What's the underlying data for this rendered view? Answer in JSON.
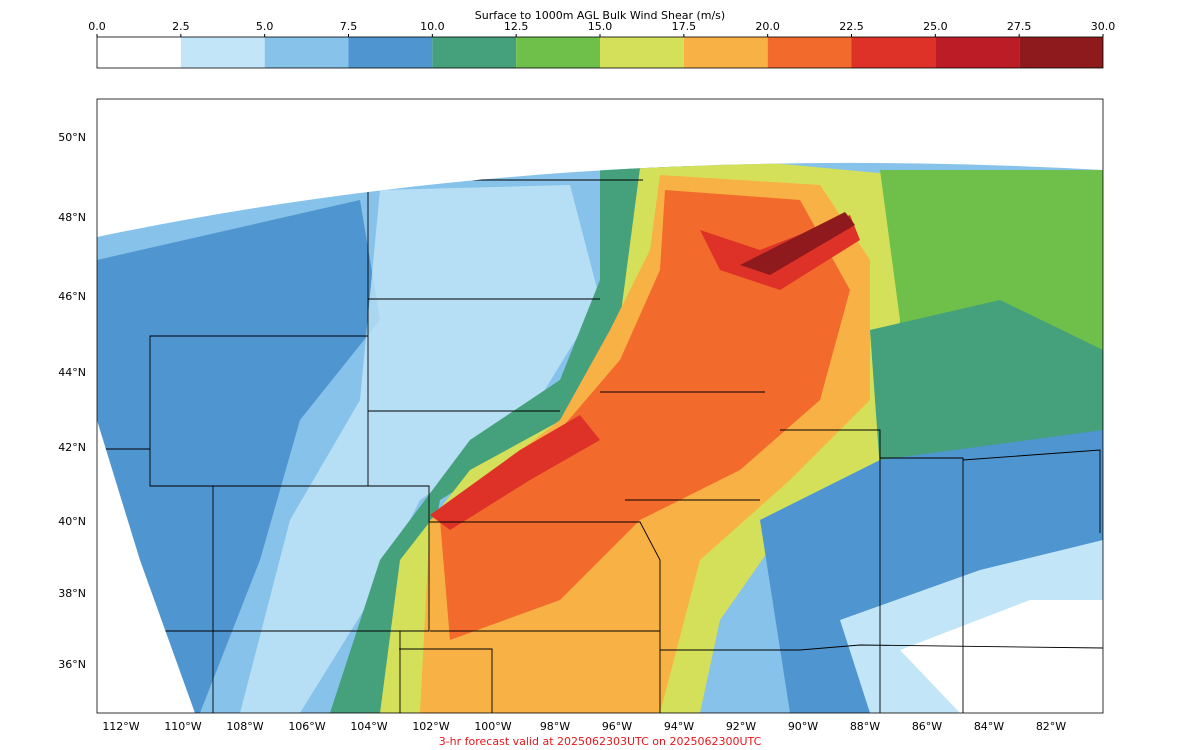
{
  "colorbar": {
    "title": "Surface to 1000m AGL Bulk Wind Shear (m/s)",
    "ticks": [
      {
        "value": 0,
        "label": "0.0"
      },
      2.5,
      {
        "value": 5,
        "label": "5.0"
      },
      7.5,
      {
        "value": 10,
        "label": "10.0"
      },
      12.5,
      {
        "value": 15,
        "label": "15.0"
      },
      17.5,
      {
        "value": 20,
        "label": "20.0"
      },
      22.5,
      {
        "value": 25,
        "label": "25.0"
      },
      27.5,
      {
        "value": 30,
        "label": "30.0"
      }
    ],
    "colors": [
      "#ffffff",
      "#c2e6f8",
      "#86c2ea",
      "#4f95d0",
      "#45a07c",
      "#6ec04a",
      "#d5e05a",
      "#f8b144",
      "#f26a2c",
      "#de3228",
      "#bb1c25",
      "#8e1a1d"
    ]
  },
  "map": {
    "lat_labels": [
      "50°N",
      "48°N",
      "46°N",
      "44°N",
      "42°N",
      "40°N",
      "38°N",
      "36°N"
    ],
    "lon_labels": [
      "112°W",
      "110°W",
      "108°W",
      "106°W",
      "104°W",
      "102°W",
      "100°W",
      "98°W",
      "96°W",
      "94°W",
      "92°W",
      "90°W",
      "88°W",
      "86°W",
      "84°W",
      "82°W"
    ]
  },
  "footer": "3-hr forecast valid at 2025062303UTC on 2025062300UTC"
}
